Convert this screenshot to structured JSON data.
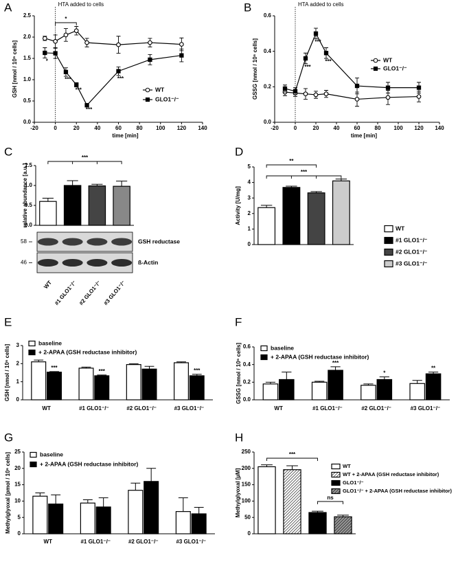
{
  "chart_data": [
    {
      "type": "line",
      "label": "A",
      "annotation": "HTA added to cells",
      "xlabel": "time [min]",
      "ylabel": "GSH [nmol / 10⁶ cells]",
      "x": [
        -10,
        0,
        10,
        20,
        30,
        60,
        90,
        120
      ],
      "xlim": [
        -20,
        140
      ],
      "xticks": [
        -20,
        0,
        20,
        40,
        60,
        80,
        100,
        120,
        140
      ],
      "ylim": [
        0,
        2.5
      ],
      "yticks": [
        {
          "value": 0,
          "label": "0.0"
        },
        0.5,
        {
          "value": 1,
          "label": "1.0"
        },
        1.5,
        {
          "value": 2,
          "label": "2.0"
        },
        2.5
      ],
      "legend": "lower right",
      "series": [
        {
          "name": "WT",
          "color": "#000000",
          "marker": "circle",
          "marker_fill": "#ffffff",
          "values": [
            1.97,
            1.9,
            2.05,
            2.15,
            1.87,
            1.82,
            1.87,
            1.83
          ],
          "errors": [
            0.05,
            0.15,
            0.15,
            0.1,
            0.1,
            0.2,
            0.1,
            0.15
          ]
        },
        {
          "name": "GLO1⁻/⁻",
          "color": "#000000",
          "marker": "square",
          "marker_fill": "#000000",
          "values": [
            1.63,
            1.62,
            1.18,
            0.88,
            0.4,
            1.2,
            1.47,
            1.57
          ],
          "errors": [
            0.12,
            0.12,
            0.1,
            0.05,
            0.03,
            0.1,
            0.12,
            0.15
          ],
          "significance": [
            "*",
            null,
            "***",
            "***",
            "***",
            "***",
            null,
            null
          ]
        }
      ],
      "comparisons": [
        "*"
      ]
    },
    {
      "type": "line",
      "label": "B",
      "annotation": "HTA added to cells",
      "xlabel": "time [min]",
      "ylabel": "GSSG [nmol / 10⁶ cells]",
      "x": [
        -10,
        0,
        10,
        20,
        30,
        60,
        90,
        120
      ],
      "xlim": [
        -20,
        140
      ],
      "xticks": [
        -20,
        0,
        20,
        40,
        60,
        80,
        100,
        120,
        140
      ],
      "ylim": [
        0,
        0.6
      ],
      "yticks": [
        {
          "value": 0,
          "label": "0.0"
        },
        0.2,
        0.4,
        0.6
      ],
      "legend": "center right",
      "series": [
        {
          "name": "WT",
          "color": "#000000",
          "marker": "circle",
          "marker_fill": "#ffffff",
          "values": [
            0.17,
            0.165,
            0.16,
            0.155,
            0.16,
            0.13,
            0.14,
            0.145
          ],
          "errors": [
            0.02,
            0.02,
            0.03,
            0.02,
            0.02,
            0.04,
            0.04,
            0.03
          ]
        },
        {
          "name": "GLO1⁻/⁻",
          "color": "#000000",
          "marker": "square",
          "marker_fill": "#000000",
          "values": [
            0.19,
            0.175,
            0.36,
            0.5,
            0.39,
            0.205,
            0.195,
            0.195
          ],
          "errors": [
            0.02,
            0.02,
            0.03,
            0.03,
            0.03,
            0.045,
            0.03,
            0.03
          ],
          "significance": [
            null,
            null,
            "***",
            "***",
            "***",
            null,
            null,
            null
          ]
        }
      ]
    },
    {
      "type": "bar",
      "label": "C",
      "ylabel": "relative abundance [a.u.]",
      "categories": [
        "WT",
        "#1 GLO1⁻/⁻",
        "#2 GLO1⁻/⁻",
        "#3 GLO1⁻/⁻"
      ],
      "values": [
        0.6,
        1.0,
        0.99,
        0.98
      ],
      "errors": [
        0.08,
        0.12,
        0.04,
        0.13
      ],
      "colors": [
        "#ffffff",
        "#000000",
        "#444444",
        "#888888"
      ],
      "ylim": [
        0,
        1.5
      ],
      "yticks": [
        {
          "value": 0,
          "label": "0.0"
        },
        0.5,
        {
          "value": 1,
          "label": "1.0"
        },
        1.5
      ],
      "comparisons": [
        "***"
      ],
      "blot": {
        "bands": [
          "GSH reductase",
          "ß-Actin"
        ],
        "markers": [
          58,
          46
        ]
      }
    },
    {
      "type": "bar",
      "label": "D",
      "ylabel": "Activity [U/mg]",
      "categories": [
        "WT",
        "#1 GLO1⁻/⁻",
        "#2 GLO1⁻/⁻",
        "#3 GLO1⁻/⁻"
      ],
      "values": [
        2.38,
        3.68,
        3.33,
        4.1
      ],
      "errors": [
        0.15,
        0.08,
        0.08,
        0.12
      ],
      "colors": [
        "#ffffff",
        "#000000",
        "#444444",
        "#cccccc"
      ],
      "ylim": [
        0,
        5
      ],
      "yticks": [
        0,
        1,
        2,
        3,
        4,
        5
      ],
      "legend": "right",
      "comparisons": [
        "**",
        "***"
      ]
    },
    {
      "type": "bar",
      "label": "E",
      "ylabel": "GSH [nmol / 10⁶ cells]",
      "categories": [
        "WT",
        "#1 GLO1⁻/⁻",
        "#2 GLO1⁻/⁻",
        "#3 GLO1⁻/⁻"
      ],
      "ylim": [
        0,
        3
      ],
      "yticks": [
        0,
        1,
        2,
        3
      ],
      "legend": "upper left",
      "series": [
        {
          "name": "baseline",
          "color": "#ffffff",
          "values": [
            2.1,
            1.75,
            1.95,
            2.05
          ],
          "errors": [
            0.1,
            0.06,
            0.04,
            0.05
          ]
        },
        {
          "name": "+ 2-APAA (GSH reductase inhibitor)",
          "color": "#000000",
          "values": [
            1.53,
            1.33,
            1.7,
            1.33
          ],
          "errors": [
            0.03,
            0.04,
            0.15,
            0.08
          ],
          "significance": [
            "***",
            "***",
            null,
            "***"
          ]
        }
      ]
    },
    {
      "type": "bar",
      "label": "F",
      "ylabel": "GSSG [nmol / 10⁶ cells]",
      "categories": [
        "WT",
        "#1 GLO1⁻/⁻",
        "#2 GLO1⁻/⁻",
        "#3 GLO1⁻/⁻"
      ],
      "ylim": [
        0,
        0.6
      ],
      "yticks": [
        {
          "value": 0,
          "label": "0.0"
        },
        0.2,
        0.4,
        0.6
      ],
      "legend": "upper left",
      "series": [
        {
          "name": "baseline",
          "color": "#ffffff",
          "values": [
            0.18,
            0.2,
            0.165,
            0.185
          ],
          "errors": [
            0.02,
            0.01,
            0.015,
            0.035
          ]
        },
        {
          "name": "+ 2-APAA (GSH reductase inhibitor)",
          "color": "#000000",
          "values": [
            0.23,
            0.335,
            0.23,
            0.295
          ],
          "errors": [
            0.085,
            0.04,
            0.03,
            0.02
          ],
          "significance": [
            null,
            "***",
            "*",
            "**"
          ]
        }
      ]
    },
    {
      "type": "bar",
      "label": "G",
      "ylabel": "Methylglyoxal [pmol / 10⁶ cells]",
      "categories": [
        "WT",
        "#1 GLO1⁻/⁻",
        "#2 GLO1⁻/⁻",
        "#3 GLO1⁻/⁻"
      ],
      "ylim": [
        0,
        25
      ],
      "yticks": [
        0,
        5,
        10,
        15,
        20,
        25
      ],
      "legend": "upper left",
      "series": [
        {
          "name": "baseline",
          "color": "#ffffff",
          "values": [
            11.5,
            9.4,
            13.3,
            6.8
          ],
          "errors": [
            1,
            1,
            2.2,
            4.2
          ]
        },
        {
          "name": "+ 2-APAA (GSH reductase inhibitor)",
          "color": "#000000",
          "values": [
            9.1,
            8.2,
            16,
            6.1
          ],
          "errors": [
            2.8,
            2.8,
            4,
            2
          ]
        }
      ]
    },
    {
      "type": "bar",
      "label": "H",
      "ylabel": "Methylglyoxal [µM]",
      "categories": [
        "WT",
        "WT + 2-APAA (GSH reductase inhibitor)",
        "GLO1⁻/⁻",
        "GLO1⁻/⁻ + 2-APAA (GSH reductase inhibitor)"
      ],
      "values": [
        205,
        196,
        65,
        52
      ],
      "errors": [
        6,
        12,
        4,
        5
      ],
      "colors": [
        "#ffffff",
        "#ffffff",
        "#000000",
        "#999999"
      ],
      "hatch": [
        false,
        true,
        false,
        true
      ],
      "ylim": [
        0,
        250
      ],
      "yticks": [
        0,
        50,
        100,
        150,
        200,
        250
      ],
      "legend": "upper right",
      "comparisons": [
        "***",
        "ns"
      ]
    }
  ]
}
